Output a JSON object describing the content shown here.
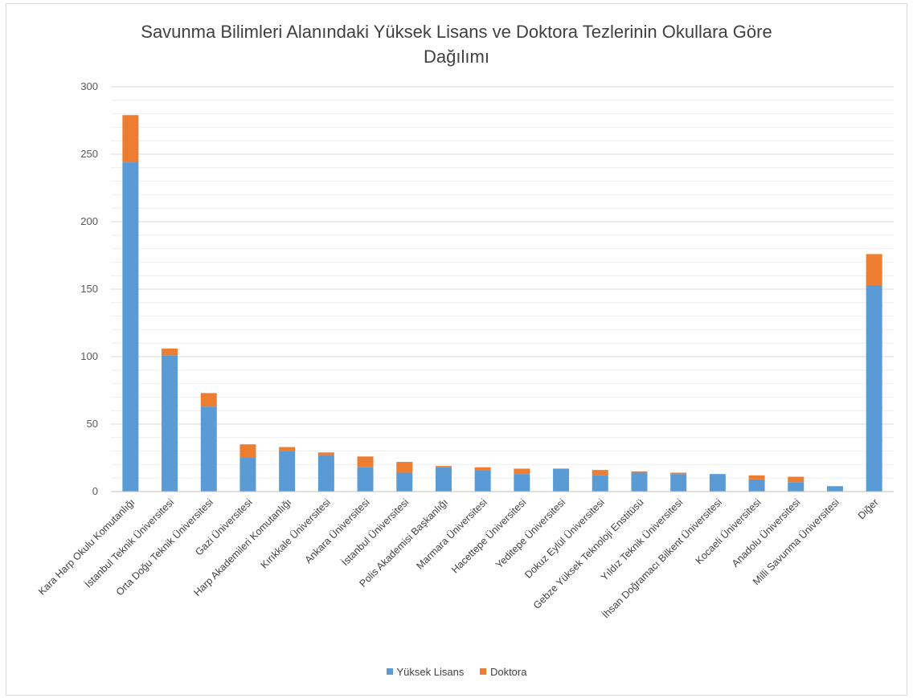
{
  "colors": {
    "yuksek_lisans": "#5b9bd5",
    "doktora": "#ed7d31",
    "grid": "#d9d9d9",
    "axis": "#bfbfbf"
  },
  "chart_data": {
    "type": "bar",
    "stacked": true,
    "title_lines": [
      "Savunma Bilimleri Alanındaki Yüksek Lisans ve Doktora Tezlerinin Okullara Göre",
      "Dağılımı"
    ],
    "categories": [
      "Kara Harp Okulu Komutanlığı",
      "İstanbul Teknik Üniversitesi",
      "Orta Doğu Teknik Üniversitesi",
      "Gazi Üniversitesi",
      "Harp Akademileri Komutanlığı",
      "Kırıkkale Üniversitesi",
      "Ankara Üniversitesi",
      "İstanbul Üniversitesi",
      "Polis Akademisi Başkanlığı",
      "Marmara Üniversitesi",
      "Hacettepe Üniversitesi",
      "Yeditepe Üniversitesi",
      "Dokuz Eylül Üniversitesi",
      "Gebze Yüksek Teknoloji Enstitüsü",
      "Yıldız Teknik Üniversitesi",
      "İhsan Doğramacı Bilkent Üniversitesi",
      "Kocaeli Üniversitesi",
      "Anadolu Üniversitesi",
      "Milli Savunma Üniversitesi",
      "Diğer"
    ],
    "series": [
      {
        "name": "Yüksek Lisans",
        "values": [
          244,
          101,
          63,
          25,
          30,
          27,
          18,
          14,
          18,
          16,
          13,
          17,
          12,
          14,
          13,
          13,
          9,
          7,
          4,
          153
        ]
      },
      {
        "name": "Doktora",
        "values": [
          35,
          5,
          10,
          10,
          3,
          2,
          8,
          8,
          1,
          2,
          4,
          0,
          4,
          1,
          1,
          0,
          3,
          4,
          0,
          23
        ]
      }
    ],
    "ylim": [
      0,
      300
    ],
    "yticks": [
      "0",
      "50",
      "100",
      "150",
      "200",
      "250",
      "300"
    ],
    "grid": true,
    "minor_grid_step": 10,
    "legend_position": "bottom"
  }
}
